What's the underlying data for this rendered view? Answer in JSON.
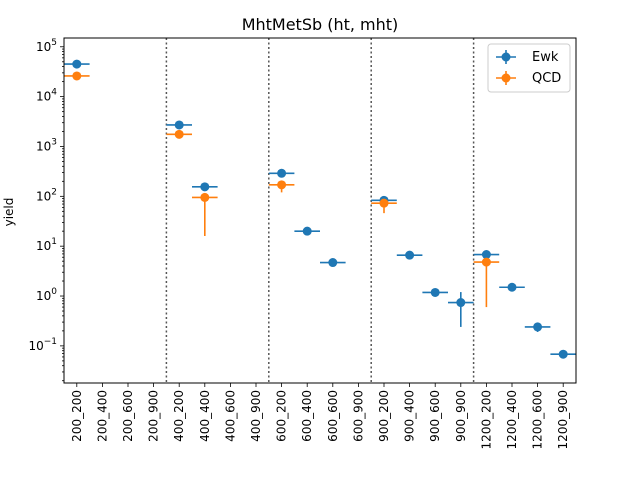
{
  "chart_data": {
    "type": "scatter",
    "title": "MhtMetSb (ht, mht)",
    "xlabel": "",
    "ylabel": "yield",
    "yscale": "log",
    "ylim": [
      0.018,
      150000
    ],
    "yticks": [
      {
        "value": 0.1,
        "base": "10",
        "exp": "−1"
      },
      {
        "value": 1,
        "base": "10",
        "exp": "0"
      },
      {
        "value": 10,
        "base": "10",
        "exp": "1"
      },
      {
        "value": 100,
        "base": "10",
        "exp": "2"
      },
      {
        "value": 1000,
        "base": "10",
        "exp": "3"
      },
      {
        "value": 10000,
        "base": "10",
        "exp": "4"
      },
      {
        "value": 100000,
        "base": "10",
        "exp": "5"
      }
    ],
    "categories": [
      "200_200",
      "200_400",
      "200_600",
      "200_900",
      "400_200",
      "400_400",
      "400_600",
      "400_900",
      "600_200",
      "600_400",
      "600_600",
      "600_900",
      "900_200",
      "900_400",
      "900_600",
      "900_900",
      "1200_200",
      "1200_400",
      "1200_600",
      "1200_900"
    ],
    "dividers_after": [
      "200_900",
      "400_900",
      "600_900",
      "900_900"
    ],
    "legend_position": "upper right",
    "series": [
      {
        "name": "Ewk",
        "color": "#1f77b4",
        "values": [
          45000,
          null,
          null,
          null,
          2700,
          155,
          null,
          null,
          290,
          20,
          4.7,
          null,
          83,
          6.6,
          1.18,
          0.74,
          6.8,
          1.5,
          0.24,
          0.068
        ],
        "err_lo": [
          0,
          null,
          null,
          null,
          0,
          0,
          null,
          null,
          0,
          0,
          0.5,
          null,
          5,
          0.4,
          0.12,
          0.5,
          0.7,
          0.1,
          0.05,
          0.012
        ],
        "err_hi": [
          0,
          null,
          null,
          null,
          0,
          0,
          null,
          null,
          0,
          0,
          0.5,
          null,
          5,
          0.4,
          0.12,
          0.46,
          0.7,
          0.1,
          0.05,
          0.012
        ]
      },
      {
        "name": "QCD",
        "color": "#ff7f0e",
        "values": [
          26000,
          null,
          null,
          null,
          1750,
          95,
          null,
          null,
          170,
          null,
          null,
          null,
          73,
          null,
          null,
          null,
          4.8,
          null,
          null,
          null
        ],
        "err_lo": [
          0,
          null,
          null,
          null,
          200,
          79,
          null,
          null,
          50,
          null,
          null,
          null,
          27,
          null,
          null,
          null,
          4.2,
          null,
          null,
          null
        ],
        "err_hi": [
          0,
          null,
          null,
          null,
          200,
          5,
          null,
          null,
          20,
          null,
          null,
          null,
          7,
          null,
          null,
          null,
          0.7,
          null,
          null,
          null
        ]
      }
    ]
  }
}
